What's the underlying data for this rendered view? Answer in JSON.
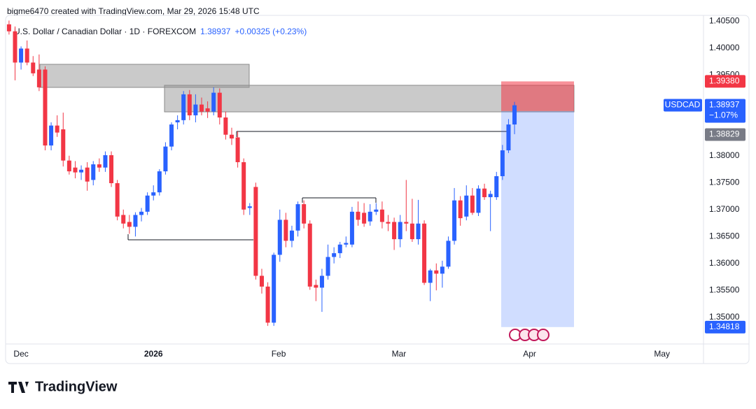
{
  "header": {
    "credit": "bigme6470 created with TradingView.com, Mar 29, 2026 15:48 UTC"
  },
  "logo": "TradingView",
  "chart_data": {
    "type": "candlestick",
    "title": "U.S. Dollar / Canadian Dollar · 1D · FOREXCOM",
    "change": "+0.00325 (+0.23%)",
    "symbol": "USDCAD",
    "change_percent": "−1.07%",
    "colors": {
      "up": "#2962ff",
      "down": "#f23645"
    },
    "open": [
      1.4044,
      1.4031,
      1.3973,
      1.3999,
      1.3973,
      1.396,
      1.396,
      1.3819,
      1.3856,
      1.3849,
      1.3791,
      1.3778,
      1.3769,
      1.3778,
      1.3755,
      1.3784,
      1.3778,
      1.3801,
      1.3749,
      1.369,
      1.3677,
      1.3668,
      1.369,
      1.3696,
      1.3726,
      1.3732,
      1.3771,
      1.3817,
      1.3862,
      1.3866,
      1.3914,
      1.3875,
      1.3895,
      1.3888,
      1.3882,
      1.3917,
      1.3871,
      1.3839,
      1.3834,
      1.3788,
      1.3703,
      1.3742,
      1.3577,
      1.3557,
      1.349,
      1.3616,
      1.3681,
      1.3642,
      1.3661,
      1.371,
      1.3674,
      1.356,
      1.3555,
      1.3577,
      1.3612,
      1.3619,
      1.3635,
      1.3635,
      1.3696,
      1.3694,
      1.3678,
      1.3696,
      1.37,
      1.3677,
      1.3677,
      1.3645,
      1.3677,
      1.3674,
      1.3645,
      1.3674,
      1.3564,
      1.3587,
      1.3581,
      1.3594,
      1.3642,
      1.3717,
      1.3687,
      1.3726,
      1.3694,
      1.3739,
      1.3723,
      1.3723,
      1.3762,
      1.381,
      1.3858
    ],
    "high": [
      1.4051,
      1.404,
      1.4003,
      1.4014,
      1.3985,
      1.3988,
      1.3966,
      1.3862,
      1.3875,
      1.388,
      1.38,
      1.379,
      1.3782,
      1.3788,
      1.379,
      1.3795,
      1.3808,
      1.3808,
      1.3755,
      1.37,
      1.369,
      1.3695,
      1.3703,
      1.3732,
      1.3745,
      1.3775,
      1.3825,
      1.3862,
      1.3875,
      1.392,
      1.3922,
      1.3914,
      1.3908,
      1.3901,
      1.3927,
      1.3925,
      1.3882,
      1.3852,
      1.3845,
      1.3795,
      1.3712,
      1.375,
      1.359,
      1.3565,
      1.362,
      1.37,
      1.3694,
      1.367,
      1.3715,
      1.3717,
      1.368,
      1.357,
      1.359,
      1.3635,
      1.363,
      1.364,
      1.365,
      1.3705,
      1.3715,
      1.3712,
      1.371,
      1.3712,
      1.3715,
      1.369,
      1.3685,
      1.369,
      1.3755,
      1.372,
      1.3718,
      1.368,
      1.359,
      1.36,
      1.3605,
      1.365,
      1.374,
      1.3725,
      1.3745,
      1.374,
      1.3745,
      1.3748,
      1.3735,
      1.377,
      1.382,
      1.3868,
      1.39
    ],
    "low": [
      1.4025,
      1.394,
      1.396,
      1.3968,
      1.3948,
      1.392,
      1.381,
      1.381,
      1.3835,
      1.378,
      1.3765,
      1.3758,
      1.3755,
      1.3735,
      1.3745,
      1.377,
      1.377,
      1.3742,
      1.368,
      1.3665,
      1.3655,
      1.365,
      1.3678,
      1.369,
      1.3717,
      1.3726,
      1.3765,
      1.381,
      1.3849,
      1.3858,
      1.3866,
      1.3862,
      1.3875,
      1.387,
      1.3875,
      1.3858,
      1.383,
      1.382,
      1.3778,
      1.369,
      1.369,
      1.357,
      1.3544,
      1.3484,
      1.3484,
      1.3603,
      1.363,
      1.363,
      1.365,
      1.3665,
      1.3551,
      1.353,
      1.351,
      1.357,
      1.36,
      1.361,
      1.363,
      1.363,
      1.367,
      1.3668,
      1.367,
      1.369,
      1.3665,
      1.366,
      1.3625,
      1.363,
      1.366,
      1.364,
      1.3635,
      1.356,
      1.353,
      1.355,
      1.3555,
      1.359,
      1.3635,
      1.367,
      1.368,
      1.369,
      1.3688,
      1.3718,
      1.366,
      1.3718,
      1.3755,
      1.3805,
      1.384
    ],
    "close": [
      1.4031,
      1.3973,
      1.3999,
      1.3973,
      1.3953,
      1.3927,
      1.3819,
      1.3856,
      1.3843,
      1.3791,
      1.3771,
      1.3769,
      1.3774,
      1.3752,
      1.3784,
      1.3778,
      1.3801,
      1.3749,
      1.3687,
      1.3674,
      1.3668,
      1.369,
      1.3696,
      1.3726,
      1.3732,
      1.3771,
      1.3817,
      1.3858,
      1.3866,
      1.3914,
      1.3875,
      1.3895,
      1.3882,
      1.3882,
      1.3917,
      1.3871,
      1.3839,
      1.3832,
      1.3788,
      1.37,
      1.3706,
      1.3577,
      1.3557,
      1.349,
      1.3616,
      1.3681,
      1.3642,
      1.3661,
      1.371,
      1.3674,
      1.3557,
      1.3555,
      1.3577,
      1.3612,
      1.3619,
      1.3635,
      1.3638,
      1.3696,
      1.3681,
      1.3674,
      1.3696,
      1.37,
      1.3677,
      1.3674,
      1.3645,
      1.3677,
      1.3674,
      1.3645,
      1.3674,
      1.3564,
      1.3587,
      1.3581,
      1.3594,
      1.3642,
      1.3717,
      1.3684,
      1.3726,
      1.3694,
      1.3739,
      1.3723,
      1.3729,
      1.3762,
      1.381,
      1.3858,
      1.38937
    ],
    "ylim": [
      1.3453,
      1.4058
    ],
    "yticks": [
      {
        "value": 1.405,
        "label": "1.40500"
      },
      {
        "value": 1.4,
        "label": "1.40000"
      },
      {
        "value": 1.395,
        "label": "1.39500"
      },
      {
        "value": 1.38,
        "label": "1.38000"
      },
      {
        "value": 1.375,
        "label": "1.37500"
      },
      {
        "value": 1.37,
        "label": "1.37000"
      },
      {
        "value": 1.365,
        "label": "1.36500"
      },
      {
        "value": 1.36,
        "label": "1.36000"
      },
      {
        "value": 1.355,
        "label": "1.35500"
      },
      {
        "value": 1.35,
        "label": "1.35000"
      }
    ],
    "xlim": [
      -1.5,
      115.4
    ],
    "xticks": [
      {
        "value": 2,
        "label": "Dec"
      },
      {
        "value": 24,
        "label": "2026"
      },
      {
        "value": 44.8,
        "label": "Feb"
      },
      {
        "value": 64.8,
        "label": "Mar"
      },
      {
        "value": 86.5,
        "label": "Apr"
      },
      {
        "value": 108.5,
        "label": "May"
      }
    ],
    "grid": false,
    "position": {
      "stop": {
        "value": 1.3938,
        "label": "1.39380"
      },
      "entry": {
        "value": 1.38829,
        "label": "1.38829"
      },
      "target": {
        "value": 1.34818,
        "label": "1.34818"
      }
    }
  }
}
